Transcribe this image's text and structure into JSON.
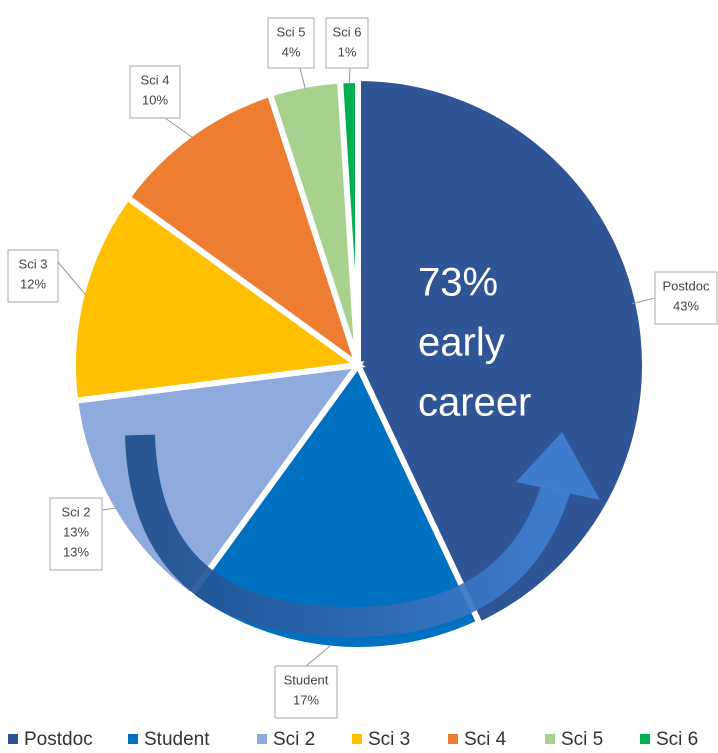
{
  "chart_data": {
    "type": "pie",
    "categories": [
      "Postdoc",
      "Student",
      "Sci 2",
      "Sci 3",
      "Sci 4",
      "Sci 5",
      "Sci 6"
    ],
    "values": [
      43,
      17,
      13,
      12,
      10,
      4,
      1
    ],
    "value_labels": [
      "43%",
      "17%",
      "13%",
      "12%",
      "10%",
      "4%",
      "1%"
    ],
    "colors": [
      "#2f5597",
      "#0070c0",
      "#8faadc",
      "#ffc000",
      "#ed7d31",
      "#a9d18e",
      "#00b050"
    ],
    "annotation": [
      "73%",
      "early",
      "career"
    ],
    "legend": "bottom"
  }
}
